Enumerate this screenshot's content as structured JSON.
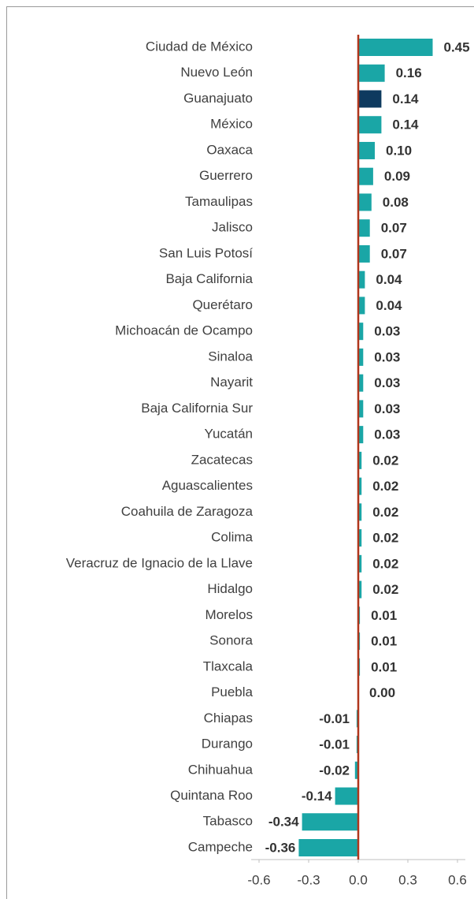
{
  "chart_data": {
    "type": "barh",
    "categories": [
      "Ciudad de México",
      "Nuevo León",
      "Guanajuato",
      "México",
      "Oaxaca",
      "Guerrero",
      "Tamaulipas",
      "Jalisco",
      "San Luis Potosí",
      "Baja California",
      "Querétaro",
      "Michoacán de Ocampo",
      "Sinaloa",
      "Nayarit",
      "Baja California Sur",
      "Yucatán",
      "Zacatecas",
      "Aguascalientes",
      "Coahuila de Zaragoza",
      "Colima",
      "Veracruz de Ignacio de la Llave",
      "Hidalgo",
      "Morelos",
      "Sonora",
      "Tlaxcala",
      "Puebla",
      "Chiapas",
      "Durango",
      "Chihuahua",
      "Quintana Roo",
      "Tabasco",
      "Campeche"
    ],
    "values": [
      0.45,
      0.16,
      0.14,
      0.14,
      0.1,
      0.09,
      0.08,
      0.07,
      0.07,
      0.04,
      0.04,
      0.03,
      0.03,
      0.03,
      0.03,
      0.03,
      0.02,
      0.02,
      0.02,
      0.02,
      0.02,
      0.02,
      0.01,
      0.01,
      0.01,
      0.0,
      -0.01,
      -0.01,
      -0.02,
      -0.14,
      -0.34,
      -0.36
    ],
    "value_labels": [
      "0.45",
      "0.16",
      "0.14",
      "0.14",
      "0.10",
      "0.09",
      "0.08",
      "0.07",
      "0.07",
      "0.04",
      "0.04",
      "0.03",
      "0.03",
      "0.03",
      "0.03",
      "0.03",
      "0.02",
      "0.02",
      "0.02",
      "0.02",
      "0.02",
      "0.02",
      "0.01",
      "0.01",
      "0.01",
      "0.00",
      "-0.01",
      "-0.01",
      "-0.02",
      "-0.14",
      "-0.34",
      "-0.36"
    ],
    "colors": [
      "#1aa6a6",
      "#1aa6a6",
      "#0e3a5f",
      "#1aa6a6",
      "#1aa6a6",
      "#1aa6a6",
      "#1aa6a6",
      "#1aa6a6",
      "#1aa6a6",
      "#1aa6a6",
      "#1aa6a6",
      "#1aa6a6",
      "#1aa6a6",
      "#1aa6a6",
      "#1aa6a6",
      "#1aa6a6",
      "#1aa6a6",
      "#1aa6a6",
      "#1aa6a6",
      "#1aa6a6",
      "#1aa6a6",
      "#1aa6a6",
      "#1aa6a6",
      "#1aa6a6",
      "#1aa6a6",
      "#1aa6a6",
      "#1aa6a6",
      "#1aa6a6",
      "#1aa6a6",
      "#1aa6a6",
      "#1aa6a6",
      "#1aa6a6"
    ],
    "xlim": [
      -0.6,
      0.6
    ],
    "xticks": [
      -0.6,
      -0.3,
      {
        "value": 0,
        "label": "0.0"
      },
      0.3,
      0.6
    ],
    "zero_line_color": "#b0361c"
  }
}
